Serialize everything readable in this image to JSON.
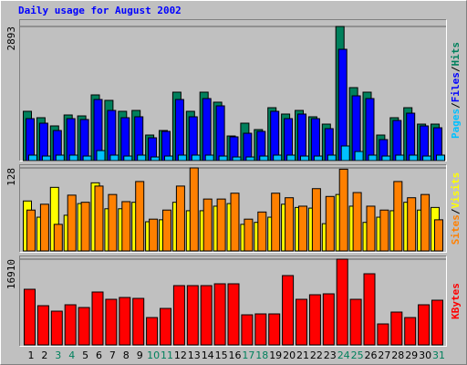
{
  "chart_data": {
    "type": "bar",
    "title": "Daily usage for August 2002",
    "categories": [
      "1",
      "2",
      "3",
      "4",
      "5",
      "6",
      "7",
      "8",
      "9",
      "10",
      "11",
      "12",
      "13",
      "14",
      "15",
      "16",
      "17",
      "18",
      "19",
      "20",
      "21",
      "22",
      "23",
      "24",
      "25",
      "26",
      "27",
      "28",
      "29",
      "30",
      "31"
    ],
    "category_colors": [
      "#000000",
      "#000000",
      "#00805c",
      "#00805c",
      "#000000",
      "#000000",
      "#000000",
      "#000000",
      "#000000",
      "#00805c",
      "#00805c",
      "#000000",
      "#000000",
      "#000000",
      "#000000",
      "#000000",
      "#00805c",
      "#00805c",
      "#000000",
      "#000000",
      "#000000",
      "#000000",
      "#000000",
      "#00805c",
      "#00805c",
      "#000000",
      "#000000",
      "#000000",
      "#000000",
      "#000000",
      "#00805c"
    ],
    "legend_separator": "/",
    "panels": [
      {
        "ylim": [
          0,
          2893
        ],
        "yticks": [
          2893
        ],
        "series": [
          {
            "name": "Hits",
            "color": "#00805c",
            "values": [
              1063,
              925,
              748,
              984,
              964,
              1417,
              1299,
              1063,
              1082,
              551,
              649,
              1476,
              1063,
              1476,
              1260,
              531,
              807,
              669,
              1141,
              1004,
              1082,
              945,
              787,
              2893,
              1574,
              1476,
              551,
              925,
              1141,
              787,
              787
            ]
          },
          {
            "name": "Files",
            "color": "#0000ff",
            "values": [
              905,
              807,
              649,
              905,
              886,
              1318,
              1082,
              925,
              945,
              492,
              630,
              1318,
              945,
              1338,
              1181,
              512,
              590,
              630,
              1063,
              905,
              1004,
              905,
              689,
              2401,
              1397,
              1338,
              453,
              866,
              1023,
              748,
              708
            ]
          },
          {
            "name": "Pages",
            "color": "#00c0ff",
            "values": [
              118,
              98,
              118,
              118,
              98,
              216,
              118,
              98,
              118,
              78,
              98,
              118,
              118,
              118,
              98,
              78,
              78,
              98,
              118,
              118,
              98,
              98,
              118,
              315,
              196,
              118,
              98,
              118,
              118,
              98,
              118
            ]
          }
        ]
      },
      {
        "ylim": [
          0,
          128
        ],
        "yticks": [
          128
        ],
        "series": [
          {
            "name": "Visits",
            "color": "#ffff00",
            "values": [
              77,
              52,
              98,
              55,
              73,
              105,
              65,
              65,
              75,
              45,
              48,
              75,
              62,
              62,
              69,
              73,
              41,
              44,
              52,
              72,
              67,
              66,
              42,
              87,
              69,
              44,
              52,
              62,
              75,
              63,
              67
            ]
          },
          {
            "name": "Sites",
            "color": "#ff8000",
            "values": [
              63,
              72,
              41,
              86,
              75,
              100,
              87,
              76,
              107,
              49,
              63,
              100,
              128,
              80,
              80,
              89,
              49,
              60,
              89,
              82,
              69,
              96,
              84,
              126,
              90,
              69,
              63,
              107,
              82,
              87,
              48
            ]
          }
        ]
      },
      {
        "ylim": [
          0,
          16910
        ],
        "yticks": [
          16910
        ],
        "series": [
          {
            "name": "KBytes",
            "color": "#ff0000",
            "values": [
              10973,
              7735,
              6656,
              7915,
              7375,
              10434,
              8995,
              9355,
              9175,
              5397,
              7196,
              11693,
              11693,
              11693,
              12053,
              12053,
              5936,
              6116,
              6116,
              13672,
              8995,
              9894,
              10074,
              16910,
              8995,
              14032,
              4138,
              6476,
              5397,
              7915,
              8815
            ]
          }
        ]
      }
    ]
  }
}
